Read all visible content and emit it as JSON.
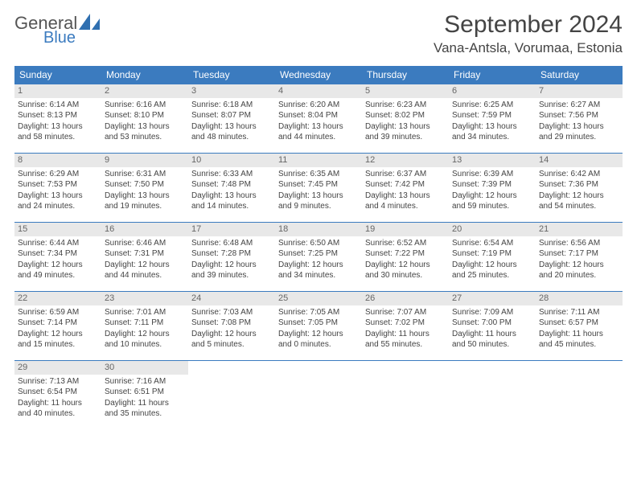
{
  "logo": {
    "part1": "General",
    "part2": "Blue",
    "icon_color": "#2f6fb0"
  },
  "title": "September 2024",
  "location": "Vana-Antsla, Vorumaa, Estonia",
  "header_bg": "#3b7bbf",
  "daynum_bg": "#e8e8e8",
  "border_color": "#3b7bbf",
  "weekdays": [
    "Sunday",
    "Monday",
    "Tuesday",
    "Wednesday",
    "Thursday",
    "Friday",
    "Saturday"
  ],
  "weeks": [
    [
      {
        "n": "1",
        "sr": "Sunrise: 6:14 AM",
        "ss": "Sunset: 8:13 PM",
        "d1": "Daylight: 13 hours",
        "d2": "and 58 minutes."
      },
      {
        "n": "2",
        "sr": "Sunrise: 6:16 AM",
        "ss": "Sunset: 8:10 PM",
        "d1": "Daylight: 13 hours",
        "d2": "and 53 minutes."
      },
      {
        "n": "3",
        "sr": "Sunrise: 6:18 AM",
        "ss": "Sunset: 8:07 PM",
        "d1": "Daylight: 13 hours",
        "d2": "and 48 minutes."
      },
      {
        "n": "4",
        "sr": "Sunrise: 6:20 AM",
        "ss": "Sunset: 8:04 PM",
        "d1": "Daylight: 13 hours",
        "d2": "and 44 minutes."
      },
      {
        "n": "5",
        "sr": "Sunrise: 6:23 AM",
        "ss": "Sunset: 8:02 PM",
        "d1": "Daylight: 13 hours",
        "d2": "and 39 minutes."
      },
      {
        "n": "6",
        "sr": "Sunrise: 6:25 AM",
        "ss": "Sunset: 7:59 PM",
        "d1": "Daylight: 13 hours",
        "d2": "and 34 minutes."
      },
      {
        "n": "7",
        "sr": "Sunrise: 6:27 AM",
        "ss": "Sunset: 7:56 PM",
        "d1": "Daylight: 13 hours",
        "d2": "and 29 minutes."
      }
    ],
    [
      {
        "n": "8",
        "sr": "Sunrise: 6:29 AM",
        "ss": "Sunset: 7:53 PM",
        "d1": "Daylight: 13 hours",
        "d2": "and 24 minutes."
      },
      {
        "n": "9",
        "sr": "Sunrise: 6:31 AM",
        "ss": "Sunset: 7:50 PM",
        "d1": "Daylight: 13 hours",
        "d2": "and 19 minutes."
      },
      {
        "n": "10",
        "sr": "Sunrise: 6:33 AM",
        "ss": "Sunset: 7:48 PM",
        "d1": "Daylight: 13 hours",
        "d2": "and 14 minutes."
      },
      {
        "n": "11",
        "sr": "Sunrise: 6:35 AM",
        "ss": "Sunset: 7:45 PM",
        "d1": "Daylight: 13 hours",
        "d2": "and 9 minutes."
      },
      {
        "n": "12",
        "sr": "Sunrise: 6:37 AM",
        "ss": "Sunset: 7:42 PM",
        "d1": "Daylight: 13 hours",
        "d2": "and 4 minutes."
      },
      {
        "n": "13",
        "sr": "Sunrise: 6:39 AM",
        "ss": "Sunset: 7:39 PM",
        "d1": "Daylight: 12 hours",
        "d2": "and 59 minutes."
      },
      {
        "n": "14",
        "sr": "Sunrise: 6:42 AM",
        "ss": "Sunset: 7:36 PM",
        "d1": "Daylight: 12 hours",
        "d2": "and 54 minutes."
      }
    ],
    [
      {
        "n": "15",
        "sr": "Sunrise: 6:44 AM",
        "ss": "Sunset: 7:34 PM",
        "d1": "Daylight: 12 hours",
        "d2": "and 49 minutes."
      },
      {
        "n": "16",
        "sr": "Sunrise: 6:46 AM",
        "ss": "Sunset: 7:31 PM",
        "d1": "Daylight: 12 hours",
        "d2": "and 44 minutes."
      },
      {
        "n": "17",
        "sr": "Sunrise: 6:48 AM",
        "ss": "Sunset: 7:28 PM",
        "d1": "Daylight: 12 hours",
        "d2": "and 39 minutes."
      },
      {
        "n": "18",
        "sr": "Sunrise: 6:50 AM",
        "ss": "Sunset: 7:25 PM",
        "d1": "Daylight: 12 hours",
        "d2": "and 34 minutes."
      },
      {
        "n": "19",
        "sr": "Sunrise: 6:52 AM",
        "ss": "Sunset: 7:22 PM",
        "d1": "Daylight: 12 hours",
        "d2": "and 30 minutes."
      },
      {
        "n": "20",
        "sr": "Sunrise: 6:54 AM",
        "ss": "Sunset: 7:19 PM",
        "d1": "Daylight: 12 hours",
        "d2": "and 25 minutes."
      },
      {
        "n": "21",
        "sr": "Sunrise: 6:56 AM",
        "ss": "Sunset: 7:17 PM",
        "d1": "Daylight: 12 hours",
        "d2": "and 20 minutes."
      }
    ],
    [
      {
        "n": "22",
        "sr": "Sunrise: 6:59 AM",
        "ss": "Sunset: 7:14 PM",
        "d1": "Daylight: 12 hours",
        "d2": "and 15 minutes."
      },
      {
        "n": "23",
        "sr": "Sunrise: 7:01 AM",
        "ss": "Sunset: 7:11 PM",
        "d1": "Daylight: 12 hours",
        "d2": "and 10 minutes."
      },
      {
        "n": "24",
        "sr": "Sunrise: 7:03 AM",
        "ss": "Sunset: 7:08 PM",
        "d1": "Daylight: 12 hours",
        "d2": "and 5 minutes."
      },
      {
        "n": "25",
        "sr": "Sunrise: 7:05 AM",
        "ss": "Sunset: 7:05 PM",
        "d1": "Daylight: 12 hours",
        "d2": "and 0 minutes."
      },
      {
        "n": "26",
        "sr": "Sunrise: 7:07 AM",
        "ss": "Sunset: 7:02 PM",
        "d1": "Daylight: 11 hours",
        "d2": "and 55 minutes."
      },
      {
        "n": "27",
        "sr": "Sunrise: 7:09 AM",
        "ss": "Sunset: 7:00 PM",
        "d1": "Daylight: 11 hours",
        "d2": "and 50 minutes."
      },
      {
        "n": "28",
        "sr": "Sunrise: 7:11 AM",
        "ss": "Sunset: 6:57 PM",
        "d1": "Daylight: 11 hours",
        "d2": "and 45 minutes."
      }
    ],
    [
      {
        "n": "29",
        "sr": "Sunrise: 7:13 AM",
        "ss": "Sunset: 6:54 PM",
        "d1": "Daylight: 11 hours",
        "d2": "and 40 minutes."
      },
      {
        "n": "30",
        "sr": "Sunrise: 7:16 AM",
        "ss": "Sunset: 6:51 PM",
        "d1": "Daylight: 11 hours",
        "d2": "and 35 minutes."
      },
      null,
      null,
      null,
      null,
      null
    ]
  ]
}
